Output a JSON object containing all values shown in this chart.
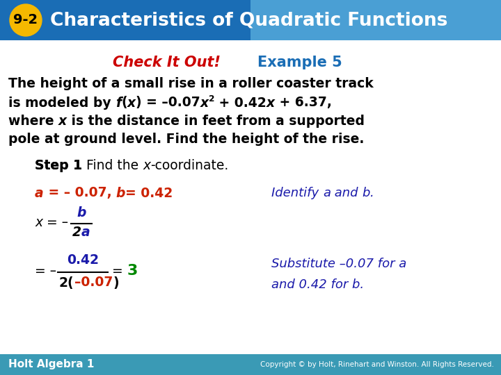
{
  "title_badge": "9-2",
  "title_text": "Characteristics of Quadratic Functions",
  "header_bg_left": "#1a6db5",
  "header_bg_right": "#4a9fd4",
  "badge_color": "#f5b800",
  "badge_text_color": "#000000",
  "title_text_color": "#ffffff",
  "subtitle_check": "Check It Out!",
  "subtitle_check_color": "#cc0000",
  "subtitle_example": "Example 5",
  "subtitle_example_color": "#1a6db5",
  "body_color": "#000000",
  "red_color": "#cc2200",
  "blue_color": "#1a1aaa",
  "green_color": "#008800",
  "footer_bg": "#3a9ab5",
  "footer_left": "Holt Algebra 1",
  "footer_right": "Copyright © by Holt, Rinehart and Winston. All Rights Reserved.",
  "footer_text_color": "#ffffff",
  "bg_color": "#ffffff"
}
